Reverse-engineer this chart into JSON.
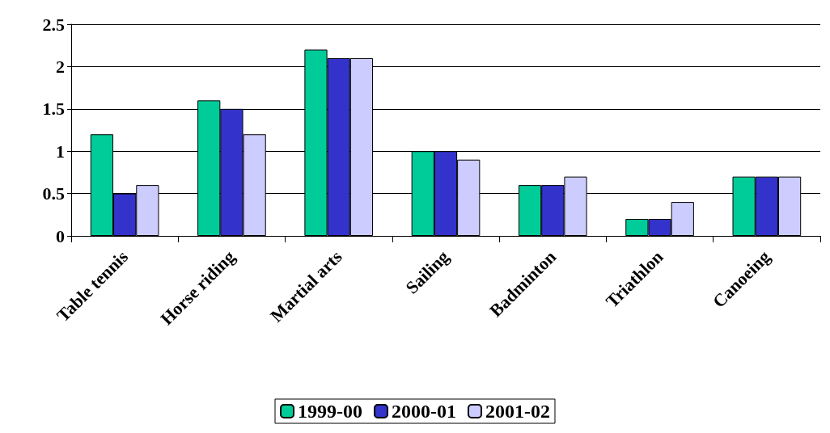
{
  "chart_data": {
    "type": "bar",
    "categories": [
      "Table tennis",
      "Horse riding",
      "Martial arts",
      "Sailing",
      "Badminton",
      "Triathlon",
      "Canoeing"
    ],
    "series": [
      {
        "name": "1999-00",
        "color": "#00cc99",
        "values": [
          1.2,
          1.6,
          2.2,
          1.0,
          0.6,
          0.2,
          0.7
        ]
      },
      {
        "name": "2000-01",
        "color": "#3333cc",
        "values": [
          0.5,
          1.5,
          2.1,
          1.0,
          0.6,
          0.2,
          0.7
        ]
      },
      {
        "name": "2001-02",
        "color": "#ccccff",
        "values": [
          0.6,
          1.2,
          2.1,
          0.9,
          0.7,
          0.4,
          0.7
        ]
      }
    ],
    "ylim": [
      0,
      2.5
    ],
    "yticks": [
      0,
      0.5,
      1,
      1.5,
      2,
      2.5
    ],
    "grid": "y",
    "legend": "bottom"
  }
}
